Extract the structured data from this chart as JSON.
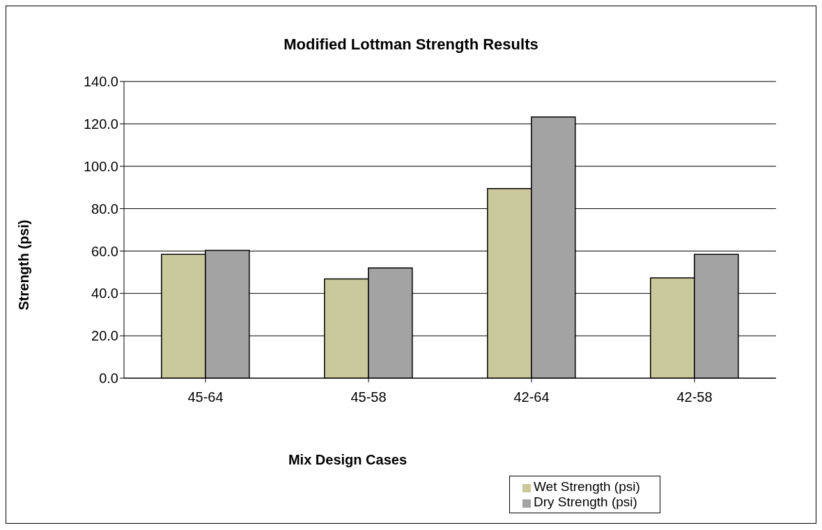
{
  "chart_data": {
    "type": "bar",
    "title": "Modified Lottman Strength Results",
    "xlabel": "Mix Design Cases",
    "ylabel": "Strength (psi)",
    "categories": [
      "45-64",
      "45-58",
      "42-64",
      "42-58"
    ],
    "series": [
      {
        "name": "Wet Strength (psi)",
        "color": "#c9c99c",
        "values": [
          58.4,
          46.8,
          89.5,
          47.3
        ]
      },
      {
        "name": "Dry Strength (psi)",
        "color": "#a3a3a3",
        "values": [
          60.3,
          52.0,
          123.2,
          58.4
        ]
      }
    ],
    "ylim": [
      0,
      140
    ],
    "yticks": [
      {
        "value": 0,
        "label": "0.0"
      },
      {
        "value": 20,
        "label": "20.0"
      },
      {
        "value": 40,
        "label": "40.0"
      },
      {
        "value": 60,
        "label": "60.0"
      },
      {
        "value": 80,
        "label": "80.0"
      },
      {
        "value": 100,
        "label": "100.0"
      },
      {
        "value": 120,
        "label": "120.0"
      },
      {
        "value": 140,
        "label": "140.0"
      }
    ],
    "grid": "y",
    "legend": "bottom right"
  }
}
